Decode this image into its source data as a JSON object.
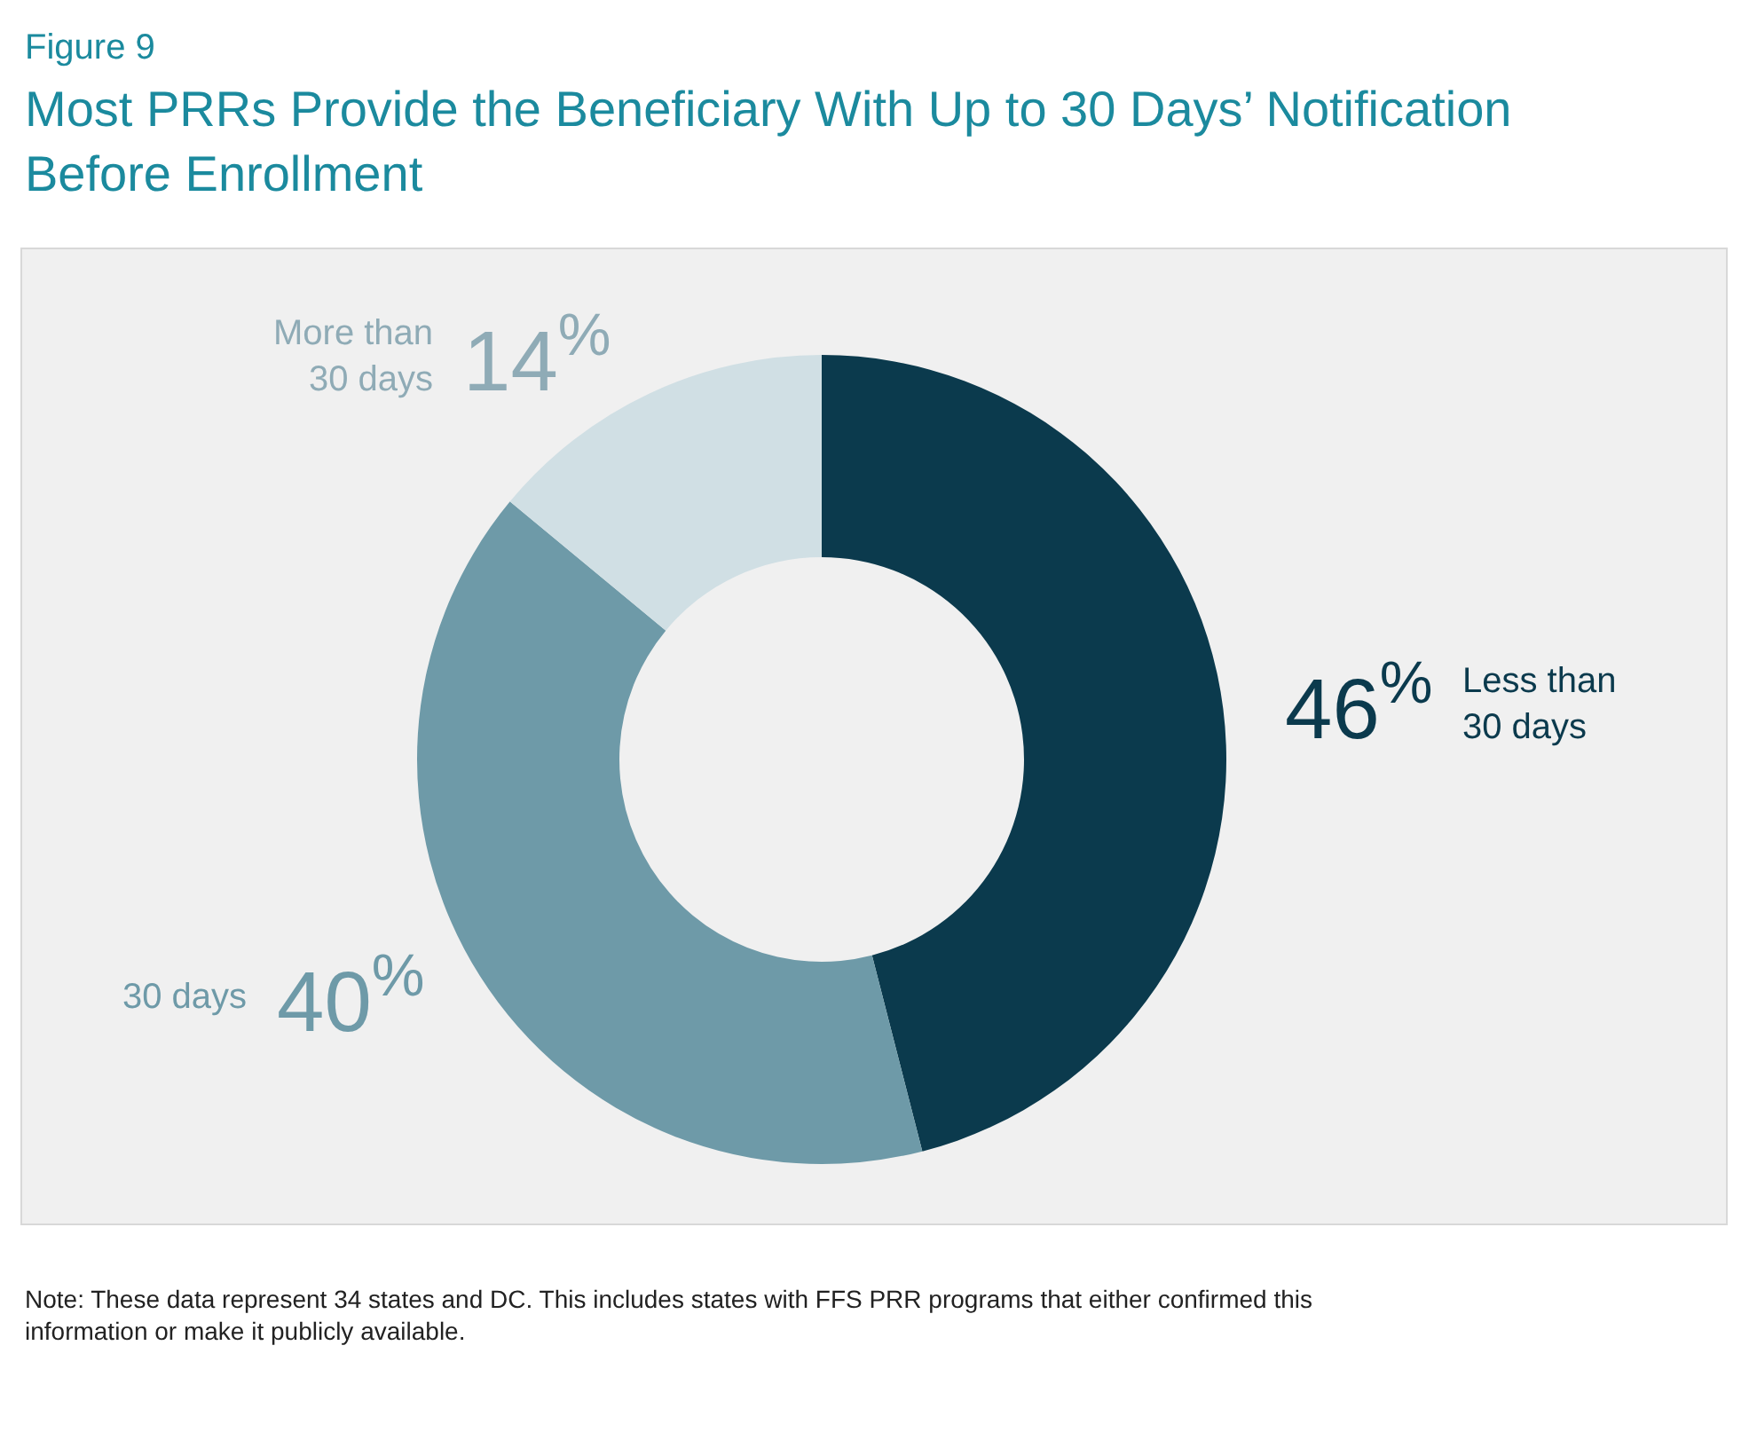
{
  "chart_data": {
    "type": "donut",
    "subtitle": "Figure 9",
    "title": "Most PRRs Provide the Beneficiary With Up to 30 Days’ Notification Before Enrollment",
    "categories": [
      "Less than 30 days",
      "30 days",
      "More than 30 days"
    ],
    "values": [
      46,
      40,
      14
    ],
    "value_labels": [
      "46$^{%}$",
      "40$^{%}$",
      "14$^{%}$"
    ],
    "colors": [
      "#0b3a4d",
      "#6e9aa8",
      "#d0dfe4"
    ],
    "legend": false,
    "annotations": [
      "Note: These data represent 34 states and DC. This includes states with FFS PRR programs that either confirmed this information or make it publicly available."
    ]
  }
}
